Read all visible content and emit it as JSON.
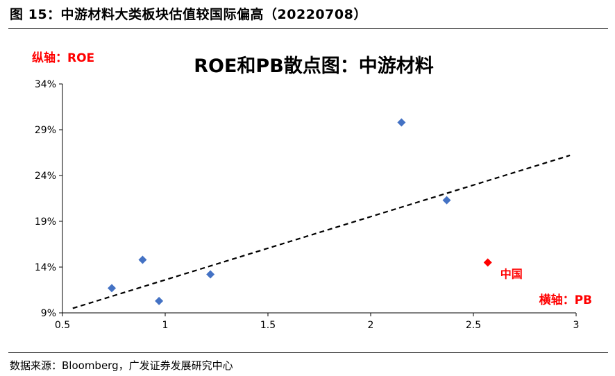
{
  "header": {
    "title": "图 15：中游材料大类板块估值较国际偏高（20220708）"
  },
  "source": "数据来源：Bloomberg，广发证券发展研究中心",
  "chart_data": {
    "type": "scatter",
    "title": "ROE和PB散点图：中游材料",
    "ylabel": "纵轴：ROE",
    "xlabel": "横轴：PB",
    "xlim": [
      0.5,
      3
    ],
    "ylim": [
      0.09,
      0.34
    ],
    "x_ticks": [
      {
        "value": 0.5,
        "label": "0.5"
      },
      {
        "value": 1,
        "label": "1"
      },
      {
        "value": 1.5,
        "label": "1.5"
      },
      {
        "value": 2,
        "label": "2"
      },
      {
        "value": 2.5,
        "label": "2.5"
      },
      {
        "value": 3,
        "label": "3"
      }
    ],
    "y_ticks": [
      {
        "value": 0.09,
        "label": "9%"
      },
      {
        "value": 0.14,
        "label": "14%"
      },
      {
        "value": 0.19,
        "label": "19%"
      },
      {
        "value": 0.24,
        "label": "24%"
      },
      {
        "value": 0.29,
        "label": "29%"
      },
      {
        "value": 0.34,
        "label": "34%"
      }
    ],
    "series": [
      {
        "color": "#4472C4",
        "marker": "diamond",
        "points": [
          {
            "x": 0.74,
            "y": 0.117
          },
          {
            "x": 0.89,
            "y": 0.148
          },
          {
            "x": 0.97,
            "y": 0.103
          },
          {
            "x": 1.22,
            "y": 0.132
          },
          {
            "x": 2.15,
            "y": 0.298
          },
          {
            "x": 2.37,
            "y": 0.213
          }
        ]
      },
      {
        "color": "#FF0000",
        "marker": "diamond",
        "points": [
          {
            "x": 2.57,
            "y": 0.145,
            "label": "中国"
          }
        ]
      }
    ],
    "trendline": {
      "style": "dashed",
      "color": "#000000",
      "from": {
        "x": 0.55,
        "y": 0.095
      },
      "to": {
        "x": 2.97,
        "y": 0.262
      }
    },
    "axis_label_color": "#FF0000",
    "grid": false
  }
}
